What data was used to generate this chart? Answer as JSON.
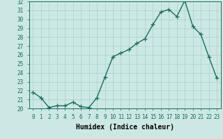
{
  "x": [
    0,
    1,
    2,
    3,
    4,
    5,
    6,
    7,
    8,
    9,
    10,
    11,
    12,
    13,
    14,
    15,
    16,
    17,
    18,
    19,
    20,
    21,
    22,
    23
  ],
  "y": [
    21.8,
    21.2,
    20.1,
    20.3,
    20.3,
    20.7,
    20.2,
    20.1,
    21.2,
    23.5,
    25.8,
    26.2,
    26.6,
    27.3,
    27.8,
    29.4,
    30.8,
    31.1,
    30.3,
    32.1,
    29.2,
    28.3,
    25.8,
    23.4
  ],
  "xlabel": "Humidex (Indice chaleur)",
  "ylim": [
    20,
    32
  ],
  "xlim": [
    -0.5,
    23.5
  ],
  "yticks": [
    20,
    21,
    22,
    23,
    24,
    25,
    26,
    27,
    28,
    29,
    30,
    31,
    32
  ],
  "xticks": [
    0,
    1,
    2,
    3,
    4,
    5,
    6,
    7,
    8,
    9,
    10,
    11,
    12,
    13,
    14,
    15,
    16,
    17,
    18,
    19,
    20,
    21,
    22,
    23
  ],
  "line_color": "#1a6b5e",
  "marker": "+",
  "bg_color": "#cce8e4",
  "grid_color": "#aacfcb",
  "label_fontsize": 7,
  "tick_fontsize": 5.5,
  "line_width": 1.0,
  "marker_size": 4,
  "marker_edge_width": 0.9
}
